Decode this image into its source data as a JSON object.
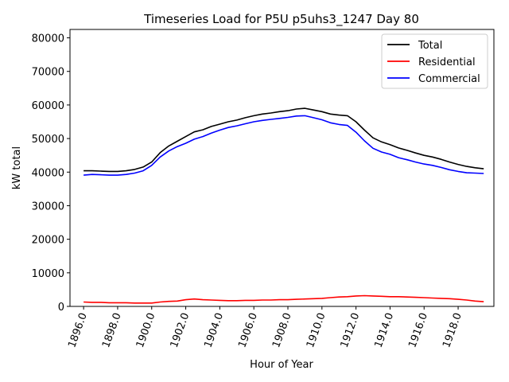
{
  "chart_data": {
    "type": "line",
    "title": "Timeseries Load for P5U p5uhs3_1247  Day 80",
    "xlabel": "Hour of Year",
    "ylabel": "kW total",
    "xlim": [
      1895.2,
      1920.1
    ],
    "ylim": [
      0,
      82500
    ],
    "xticks": [
      1896,
      1898,
      1900,
      1902,
      1904,
      1906,
      1908,
      1910,
      1912,
      1914,
      1916,
      1918
    ],
    "xtick_labels": [
      "1896.0",
      "1898.0",
      "1900.0",
      "1902.0",
      "1904.0",
      "1906.0",
      "1908.0",
      "1910.0",
      "1912.0",
      "1914.0",
      "1916.0",
      "1918.0"
    ],
    "yticks": [
      0,
      10000,
      20000,
      30000,
      40000,
      50000,
      60000,
      70000,
      80000
    ],
    "ytick_labels": [
      "0",
      "10000",
      "20000",
      "30000",
      "40000",
      "50000",
      "60000",
      "70000",
      "80000"
    ],
    "legend_position": "top-right",
    "series": [
      {
        "name": "Total",
        "color": "#000000",
        "x": [
          1896,
          1896.5,
          1897,
          1897.5,
          1898,
          1898.5,
          1899,
          1899.5,
          1900,
          1900.5,
          1901,
          1901.5,
          1902,
          1902.5,
          1903,
          1903.5,
          1904,
          1904.5,
          1905,
          1905.5,
          1906,
          1906.5,
          1907,
          1907.5,
          1908,
          1908.5,
          1909,
          1909.5,
          1910,
          1910.5,
          1911,
          1911.5,
          1912,
          1912.5,
          1913,
          1913.5,
          1914,
          1914.5,
          1915,
          1915.5,
          1916,
          1916.5,
          1917,
          1917.5,
          1918,
          1918.5,
          1919,
          1919.5
        ],
        "values": [
          40400,
          40400,
          40300,
          40200,
          40200,
          40400,
          40800,
          41500,
          43000,
          45800,
          47800,
          49200,
          50600,
          52000,
          52600,
          53600,
          54300,
          55000,
          55500,
          56200,
          56800,
          57300,
          57600,
          58000,
          58300,
          58800,
          59000,
          58500,
          58000,
          57300,
          57000,
          56800,
          55000,
          52500,
          50200,
          49000,
          48200,
          47200,
          46500,
          45700,
          45000,
          44500,
          43800,
          43000,
          42300,
          41700,
          41300,
          41000
        ]
      },
      {
        "name": "Residential",
        "color": "#ff0000",
        "x": [
          1896,
          1896.5,
          1897,
          1897.5,
          1898,
          1898.5,
          1899,
          1899.5,
          1900,
          1900.5,
          1901,
          1901.5,
          1902,
          1902.5,
          1903,
          1903.5,
          1904,
          1904.5,
          1905,
          1905.5,
          1906,
          1906.5,
          1907,
          1907.5,
          1908,
          1908.5,
          1909,
          1909.5,
          1910,
          1910.5,
          1911,
          1911.5,
          1912,
          1912.5,
          1913,
          1913.5,
          1914,
          1914.5,
          1915,
          1915.5,
          1916,
          1916.5,
          1917,
          1917.5,
          1918,
          1918.5,
          1919,
          1919.5
        ],
        "values": [
          1300,
          1200,
          1200,
          1100,
          1100,
          1100,
          1000,
          1000,
          1000,
          1300,
          1500,
          1600,
          2000,
          2200,
          2000,
          1900,
          1800,
          1700,
          1700,
          1800,
          1800,
          1900,
          1900,
          2000,
          2000,
          2100,
          2200,
          2300,
          2400,
          2600,
          2800,
          2900,
          3100,
          3200,
          3100,
          3000,
          2900,
          2900,
          2800,
          2700,
          2600,
          2500,
          2400,
          2300,
          2100,
          1900,
          1600,
          1400
        ]
      },
      {
        "name": "Commercial",
        "color": "#0000ff",
        "x": [
          1896,
          1896.5,
          1897,
          1897.5,
          1898,
          1898.5,
          1899,
          1899.5,
          1900,
          1900.5,
          1901,
          1901.5,
          1902,
          1902.5,
          1903,
          1903.5,
          1904,
          1904.5,
          1905,
          1905.5,
          1906,
          1906.5,
          1907,
          1907.5,
          1908,
          1908.5,
          1909,
          1909.5,
          1910,
          1910.5,
          1911,
          1911.5,
          1912,
          1912.5,
          1913,
          1913.5,
          1914,
          1914.5,
          1915,
          1915.5,
          1916,
          1916.5,
          1917,
          1917.5,
          1918,
          1918.5,
          1919,
          1919.5
        ],
        "values": [
          39100,
          39300,
          39200,
          39100,
          39100,
          39300,
          39700,
          40400,
          42000,
          44500,
          46300,
          47600,
          48600,
          49800,
          50600,
          51600,
          52500,
          53300,
          53800,
          54400,
          55000,
          55400,
          55700,
          56000,
          56300,
          56700,
          56800,
          56200,
          55600,
          54700,
          54200,
          53900,
          51900,
          49300,
          47100,
          46000,
          45300,
          44300,
          43700,
          43000,
          42400,
          42000,
          41400,
          40700,
          40200,
          39800,
          39700,
          39600
        ]
      }
    ]
  }
}
